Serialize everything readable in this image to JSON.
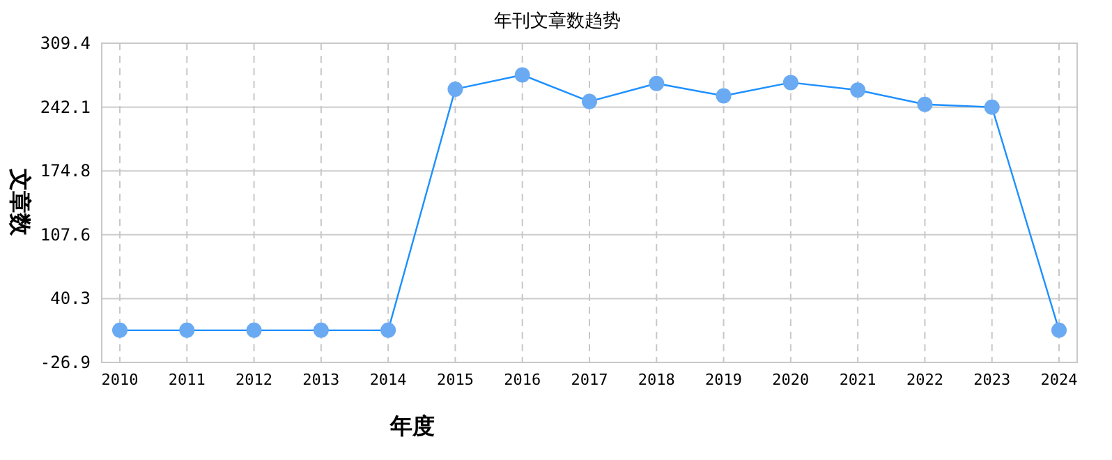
{
  "chart_data": {
    "type": "line",
    "title": "年刊文章数趋势",
    "xlabel": "年度",
    "ylabel": "文章数",
    "categories": [
      "2010",
      "2011",
      "2012",
      "2013",
      "2014",
      "2015",
      "2016",
      "2017",
      "2018",
      "2019",
      "2020",
      "2021",
      "2022",
      "2023",
      "2024"
    ],
    "series": [
      {
        "color": "#1e90ff",
        "values": [
          7,
          7,
          7,
          7,
          7,
          261,
          276,
          248,
          267,
          254,
          268,
          260,
          245,
          242,
          7
        ]
      }
    ],
    "ylim": [
      -26.9,
      309.4
    ],
    "yticks": [
      -26.9,
      40.3,
      107.6,
      174.8,
      242.1,
      309.4
    ],
    "grid": true,
    "marker": "circle",
    "line_style": "solid"
  }
}
